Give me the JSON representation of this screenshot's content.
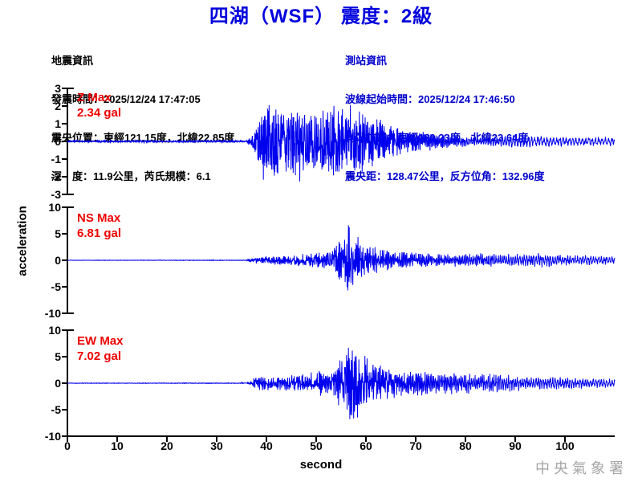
{
  "title": "四湖（WSF） 震度：2級",
  "colors": {
    "title_blue": "#0000DD",
    "station_blue": "#0000CC",
    "trace_blue": "#0000EE",
    "max_red": "#EE0000",
    "axis_black": "#000000",
    "watermark_gray": "#A6A6A6",
    "text_black": "#000000",
    "background": "#FFFFFF"
  },
  "quake_info": {
    "header": "地震資訊",
    "lines": [
      "發震時間：2025/12/24 17:47:05",
      "震央位置：東經121.15度，北緯22.85度",
      "深　度：11.9公里，芮氏規模：6.1"
    ]
  },
  "station_info": {
    "header": "測站資訊",
    "lines": [
      "波線起始時間：2025/12/24 17:46:50",
      "測站位置：東經120.23度，北緯23.64度",
      "震央距：128.47公里，反方位角：132.96度"
    ]
  },
  "ylabel": "acceleration",
  "xlabel": "second",
  "watermark": "中央氣象署",
  "chart_data": {
    "type": "line",
    "title": "四湖（WSF） 震度：2級",
    "xlabel": "second",
    "ylabel": "acceleration",
    "x_range": [
      0,
      110
    ],
    "x_ticks": [
      0,
      10,
      20,
      30,
      40,
      50,
      60,
      70,
      80,
      90,
      100
    ],
    "grid": false,
    "channels": [
      {
        "id": "Z",
        "max_label": "Z Max",
        "max_value": "2.34 gal",
        "max_gal": 2.34,
        "ylim": [
          -3,
          3
        ],
        "y_ticks": [
          3,
          2,
          1,
          0,
          -1,
          -2,
          -3
        ],
        "onset_s": 37.5,
        "peak_s": 41,
        "envelope": [
          [
            0,
            0.05
          ],
          [
            36,
            0.06
          ],
          [
            37.5,
            0.5
          ],
          [
            39,
            1.9
          ],
          [
            41,
            2.3
          ],
          [
            44,
            1.7
          ],
          [
            47,
            2.1
          ],
          [
            50,
            1.6
          ],
          [
            53,
            1.9
          ],
          [
            56,
            2.1
          ],
          [
            58,
            1.7
          ],
          [
            61,
            1.4
          ],
          [
            64,
            1.1
          ],
          [
            68,
            0.8
          ],
          [
            72,
            0.6
          ],
          [
            76,
            0.5
          ],
          [
            80,
            0.42
          ],
          [
            85,
            0.38
          ],
          [
            90,
            0.55
          ],
          [
            94,
            0.5
          ],
          [
            98,
            0.38
          ],
          [
            103,
            0.42
          ],
          [
            110,
            0.35
          ]
        ],
        "freq_profile": [
          [
            0,
            6
          ],
          [
            37,
            7.5
          ],
          [
            60,
            6
          ],
          [
            72,
            4
          ],
          [
            82,
            2.2
          ],
          [
            92,
            1.6
          ],
          [
            110,
            1.5
          ]
        ],
        "seed": 11
      },
      {
        "id": "NS",
        "max_label": "NS Max",
        "max_value": "6.81 gal",
        "max_gal": 6.81,
        "ylim": [
          -10,
          10
        ],
        "y_ticks": [
          10,
          5,
          0,
          -5,
          -10
        ],
        "onset_s": 38,
        "peak_s": 56.5,
        "envelope": [
          [
            0,
            0.04
          ],
          [
            36,
            0.05
          ],
          [
            38,
            0.6
          ],
          [
            42,
            0.8
          ],
          [
            46,
            1.0
          ],
          [
            50,
            1.4
          ],
          [
            53,
            2.2
          ],
          [
            55,
            4.8
          ],
          [
            56.5,
            6.8
          ],
          [
            58,
            5.0
          ],
          [
            60,
            3.2
          ],
          [
            63,
            2.4
          ],
          [
            67,
            2.0
          ],
          [
            71,
            1.7
          ],
          [
            75,
            1.5
          ],
          [
            79,
            1.7
          ],
          [
            83,
            1.9
          ],
          [
            87,
            1.5
          ],
          [
            91,
            1.8
          ],
          [
            95,
            2.1
          ],
          [
            99,
            1.6
          ],
          [
            104,
            1.4
          ],
          [
            110,
            1.1
          ]
        ],
        "freq_profile": [
          [
            0,
            5
          ],
          [
            38,
            6.5
          ],
          [
            60,
            5
          ],
          [
            75,
            3.2
          ],
          [
            90,
            2.2
          ],
          [
            110,
            1.8
          ]
        ],
        "seed": 23
      },
      {
        "id": "EW",
        "max_label": "EW Max",
        "max_value": "7.02 gal",
        "max_gal": 7.02,
        "ylim": [
          -10,
          10
        ],
        "y_ticks": [
          10,
          5,
          0,
          -5,
          -10
        ],
        "onset_s": 38,
        "peak_s": 57,
        "envelope": [
          [
            0,
            0.04
          ],
          [
            36,
            0.05
          ],
          [
            38,
            1.0
          ],
          [
            42,
            1.1
          ],
          [
            46,
            1.3
          ],
          [
            50,
            1.6
          ],
          [
            53,
            2.2
          ],
          [
            55,
            4.0
          ],
          [
            57,
            7.0
          ],
          [
            59,
            4.6
          ],
          [
            62,
            3.2
          ],
          [
            66,
            2.6
          ],
          [
            70,
            2.3
          ],
          [
            74,
            2.0
          ],
          [
            78,
            2.2
          ],
          [
            82,
            1.9
          ],
          [
            86,
            2.1
          ],
          [
            90,
            1.7
          ],
          [
            94,
            1.5
          ],
          [
            98,
            1.4
          ],
          [
            103,
            1.2
          ],
          [
            110,
            1.0
          ]
        ],
        "freq_profile": [
          [
            0,
            5
          ],
          [
            38,
            6.5
          ],
          [
            60,
            5
          ],
          [
            75,
            3.2
          ],
          [
            90,
            2.2
          ],
          [
            110,
            1.8
          ]
        ],
        "seed": 37
      }
    ]
  }
}
